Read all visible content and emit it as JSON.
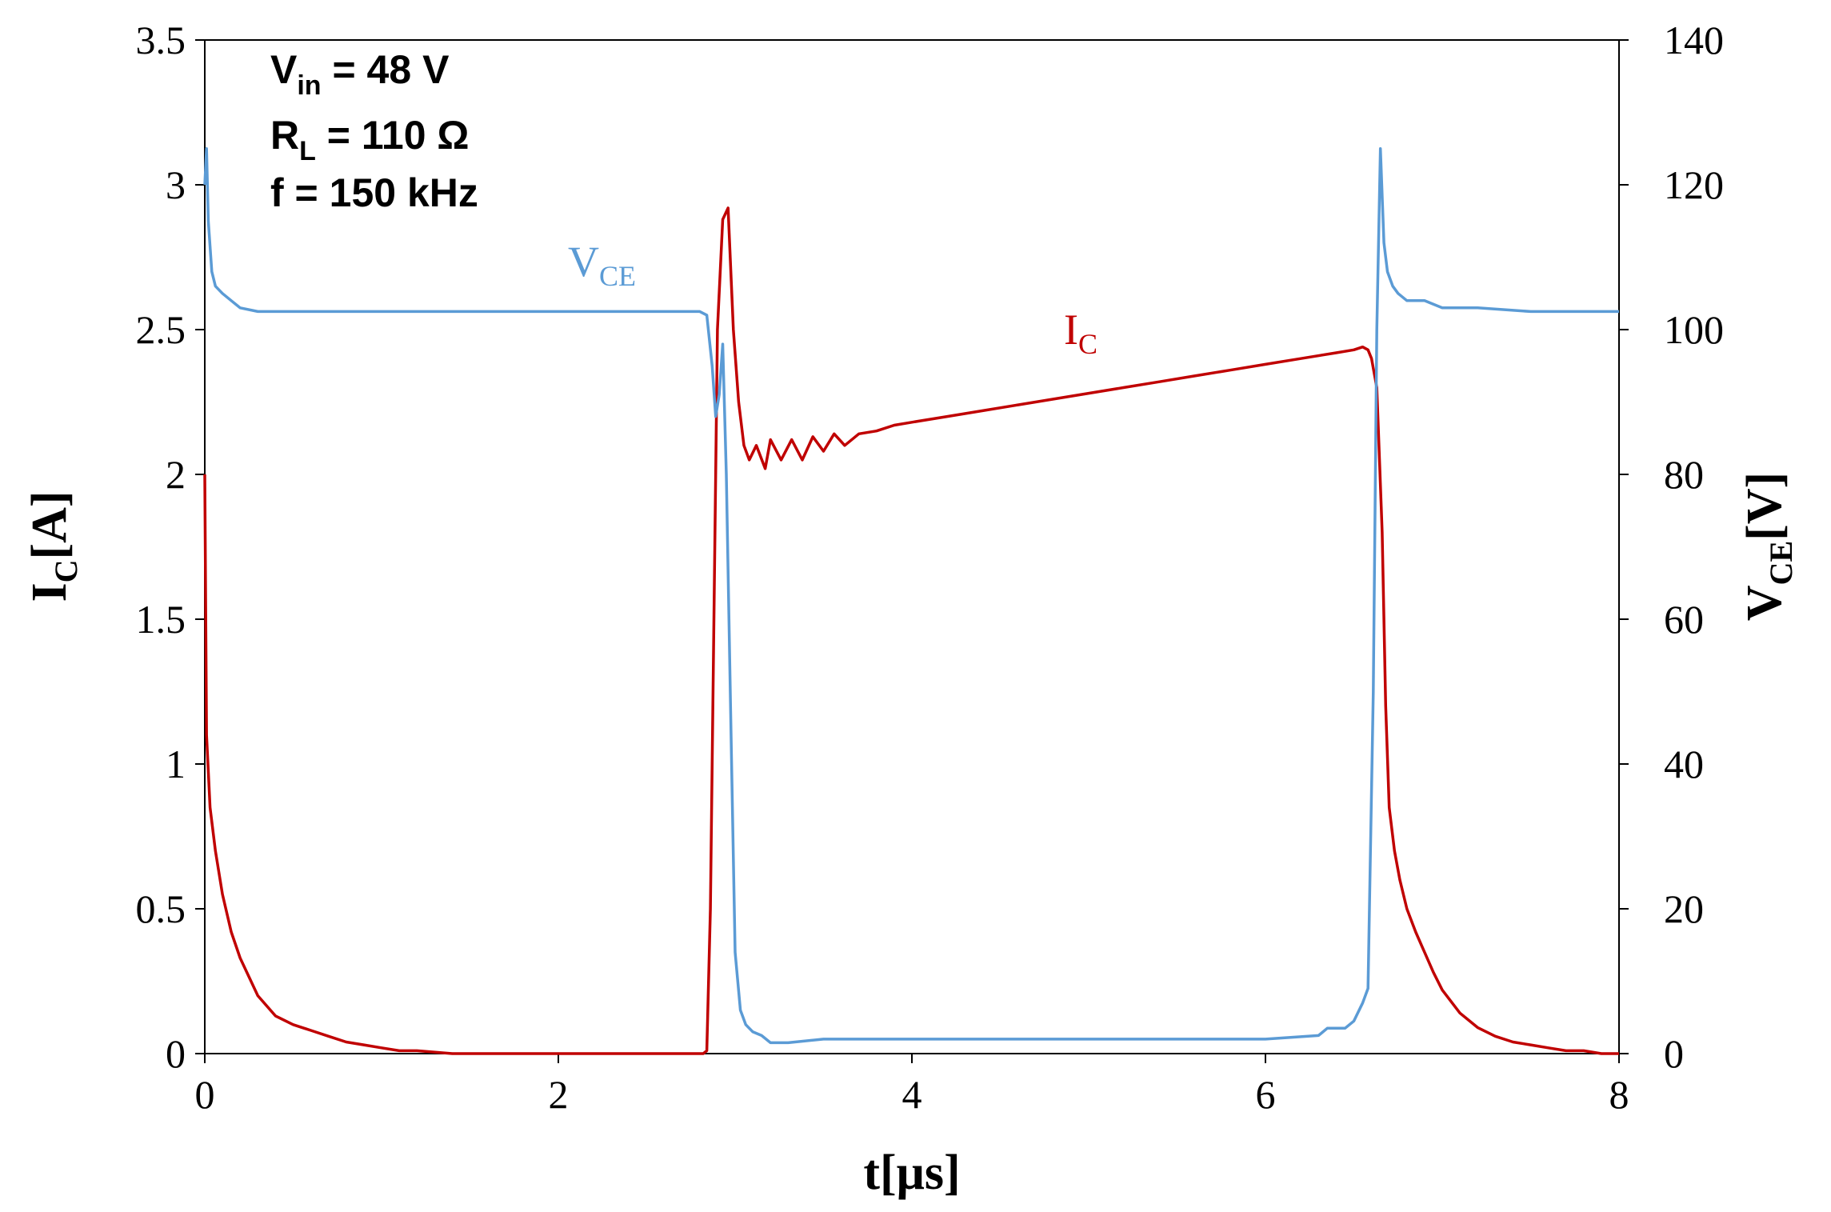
{
  "chart_data": {
    "type": "line",
    "title": "",
    "xlabel": {
      "main": "t[",
      "unit": "μs",
      "close": "]"
    },
    "ylabel_left": {
      "main": "I",
      "sub": "C",
      "unit": "[A]"
    },
    "ylabel_right": {
      "main": "V",
      "sub": "CE",
      "unit": "[V]"
    },
    "xlim": [
      0,
      8
    ],
    "ylim_left": [
      0,
      3.5
    ],
    "ylim_right": [
      0,
      140
    ],
    "x_ticks": [
      "0",
      "2",
      "4",
      "6",
      "8"
    ],
    "y_left_ticks": [
      "0",
      "0.5",
      "1",
      "1.5",
      "2",
      "2.5",
      "3",
      "3.5"
    ],
    "y_right_ticks": [
      "0",
      "20",
      "40",
      "60",
      "80",
      "100",
      "120",
      "140"
    ],
    "grid": false,
    "annotations": {
      "line1": {
        "main": "V",
        "sub": "in",
        "rest": " = 48 V"
      },
      "line2": {
        "main": "R",
        "sub": "L",
        "rest": " = 110 Ω"
      },
      "line3": {
        "text": "f = 150 kHz"
      }
    },
    "series": [
      {
        "name": "I_C",
        "label_main": "I",
        "label_sub": "C",
        "axis": "left",
        "color": "#C00000",
        "x": [
          0,
          0.01,
          0.03,
          0.06,
          0.1,
          0.15,
          0.2,
          0.3,
          0.4,
          0.5,
          0.6,
          0.7,
          0.8,
          0.9,
          1.0,
          1.1,
          1.2,
          1.4,
          1.6,
          2.0,
          2.4,
          2.78,
          2.82,
          2.84,
          2.86,
          2.88,
          2.9,
          2.93,
          2.96,
          2.99,
          3.02,
          3.05,
          3.08,
          3.12,
          3.17,
          3.2,
          3.26,
          3.32,
          3.38,
          3.44,
          3.5,
          3.56,
          3.62,
          3.7,
          3.8,
          3.9,
          4.0,
          4.2,
          4.4,
          4.6,
          4.8,
          5.0,
          5.2,
          5.4,
          5.6,
          5.8,
          6.0,
          6.2,
          6.4,
          6.5,
          6.55,
          6.58,
          6.6,
          6.63,
          6.66,
          6.68,
          6.7,
          6.73,
          6.76,
          6.8,
          6.85,
          6.9,
          6.95,
          7.0,
          7.1,
          7.2,
          7.3,
          7.4,
          7.5,
          7.6,
          7.7,
          7.8,
          7.9,
          8.0
        ],
        "y": [
          2.0,
          1.1,
          0.85,
          0.7,
          0.55,
          0.42,
          0.33,
          0.2,
          0.13,
          0.1,
          0.08,
          0.06,
          0.04,
          0.03,
          0.02,
          0.01,
          0.01,
          0.0,
          0.0,
          0.0,
          0.0,
          0.0,
          0.0,
          0.01,
          0.5,
          1.5,
          2.5,
          2.88,
          2.92,
          2.5,
          2.25,
          2.1,
          2.05,
          2.1,
          2.02,
          2.12,
          2.05,
          2.12,
          2.05,
          2.13,
          2.08,
          2.14,
          2.1,
          2.14,
          2.15,
          2.17,
          2.18,
          2.2,
          2.22,
          2.24,
          2.26,
          2.28,
          2.3,
          2.32,
          2.34,
          2.36,
          2.38,
          2.4,
          2.42,
          2.43,
          2.44,
          2.43,
          2.4,
          2.3,
          1.8,
          1.2,
          0.85,
          0.7,
          0.6,
          0.5,
          0.42,
          0.35,
          0.28,
          0.22,
          0.14,
          0.09,
          0.06,
          0.04,
          0.03,
          0.02,
          0.01,
          0.01,
          0.0,
          0.0
        ]
      },
      {
        "name": "V_CE",
        "label_main": "V",
        "label_sub": "CE",
        "axis": "right",
        "color": "#5B9BD5",
        "x": [
          0,
          0.01,
          0.02,
          0.04,
          0.06,
          0.1,
          0.15,
          0.2,
          0.3,
          0.5,
          0.8,
          1.0,
          1.5,
          2.0,
          2.5,
          2.8,
          2.84,
          2.87,
          2.89,
          2.91,
          2.93,
          2.95,
          2.98,
          3.0,
          3.03,
          3.06,
          3.1,
          3.15,
          3.2,
          3.3,
          3.5,
          4.0,
          4.5,
          5.0,
          5.5,
          6.0,
          6.3,
          6.35,
          6.4,
          6.45,
          6.5,
          6.55,
          6.58,
          6.61,
          6.63,
          6.65,
          6.67,
          6.69,
          6.72,
          6.75,
          6.8,
          6.9,
          7.0,
          7.2,
          7.5,
          8.0
        ],
        "y": [
          120,
          125,
          115,
          108,
          106,
          105,
          104,
          103,
          102.5,
          102.5,
          102.5,
          102.5,
          102.5,
          102.5,
          102.5,
          102.5,
          102,
          95,
          88,
          91,
          98,
          80,
          40,
          14,
          6,
          4,
          3,
          2.5,
          1.5,
          1.5,
          2,
          2,
          2,
          2,
          2,
          2,
          2.5,
          3.5,
          3.5,
          3.5,
          4.5,
          7,
          9,
          50,
          100,
          125,
          112,
          108,
          106,
          105,
          104,
          104,
          103,
          103,
          102.5,
          102.5
        ]
      }
    ]
  }
}
